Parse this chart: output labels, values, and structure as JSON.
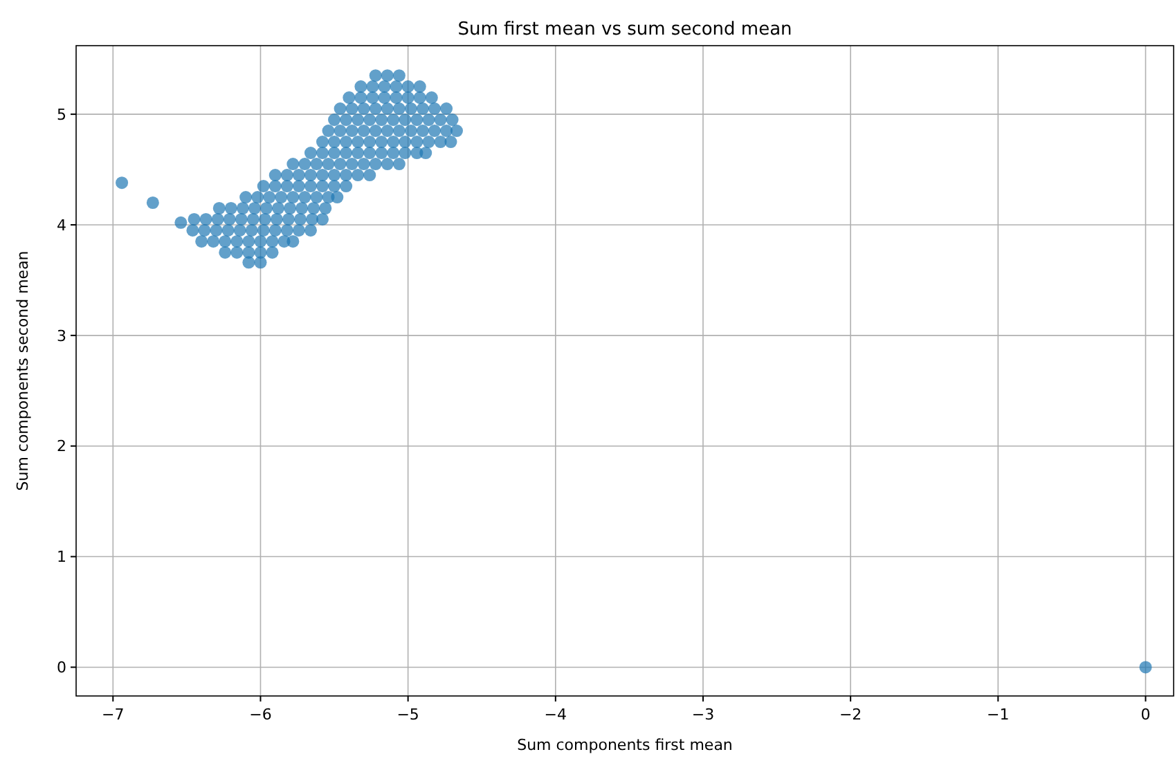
{
  "chart_data": {
    "type": "scatter",
    "title": "Sum first mean vs sum second mean",
    "xlabel": "Sum components first mean",
    "ylabel": "Sum components second mean",
    "xlim": [
      -7.25,
      0.19
    ],
    "ylim": [
      -0.26,
      5.62
    ],
    "xticks": [
      -7,
      -6,
      -5,
      -4,
      -3,
      -2,
      -1,
      0
    ],
    "yticks": [
      0,
      1,
      2,
      3,
      4,
      5
    ],
    "grid": true,
    "marker": "circle",
    "series": [
      {
        "color": "#1f77b4",
        "x": [
          -6.94,
          -6.73,
          -6.54,
          0,
          -5.22,
          -5.14,
          -5.06,
          -5.32,
          -5.24,
          -5.16,
          -5.08,
          -5.0,
          -4.92,
          -5.4,
          -5.32,
          -5.24,
          -5.16,
          -5.08,
          -5.0,
          -4.92,
          -4.84,
          -5.46,
          -5.38,
          -5.3,
          -5.22,
          -5.14,
          -5.06,
          -4.98,
          -4.9,
          -4.82,
          -4.74,
          -5.5,
          -5.42,
          -5.34,
          -5.26,
          -5.18,
          -5.1,
          -5.02,
          -4.94,
          -4.86,
          -4.78,
          -4.7,
          -5.54,
          -5.46,
          -5.38,
          -5.3,
          -5.22,
          -5.14,
          -5.06,
          -4.98,
          -4.9,
          -4.82,
          -4.74,
          -4.67,
          -5.58,
          -5.5,
          -5.42,
          -5.34,
          -5.26,
          -5.18,
          -5.1,
          -5.02,
          -4.94,
          -4.86,
          -4.78,
          -4.71,
          -5.66,
          -5.58,
          -5.5,
          -5.42,
          -5.34,
          -5.26,
          -5.18,
          -5.1,
          -5.02,
          -4.94,
          -4.88,
          -5.78,
          -5.7,
          -5.62,
          -5.54,
          -5.46,
          -5.38,
          -5.3,
          -5.22,
          -5.14,
          -5.06,
          -5.9,
          -5.82,
          -5.74,
          -5.66,
          -5.58,
          -5.5,
          -5.42,
          -5.34,
          -5.26,
          -5.98,
          -5.9,
          -5.82,
          -5.74,
          -5.66,
          -5.58,
          -5.5,
          -5.42,
          -6.1,
          -6.02,
          -5.94,
          -5.86,
          -5.78,
          -5.7,
          -5.62,
          -5.54,
          -5.48,
          -6.28,
          -6.2,
          -6.12,
          -6.04,
          -5.96,
          -5.88,
          -5.8,
          -5.72,
          -5.64,
          -5.56,
          -6.45,
          -6.37,
          -6.29,
          -6.21,
          -6.13,
          -6.05,
          -5.97,
          -5.89,
          -5.81,
          -5.73,
          -5.65,
          -5.58,
          -6.46,
          -6.38,
          -6.3,
          -6.22,
          -6.14,
          -6.06,
          -5.98,
          -5.9,
          -5.82,
          -5.74,
          -5.66,
          -6.4,
          -6.32,
          -6.24,
          -6.16,
          -6.08,
          -6.0,
          -5.92,
          -5.84,
          -5.78,
          -6.24,
          -6.16,
          -6.08,
          -6.0,
          -5.92,
          -6.08,
          -6.0
        ],
        "values": [
          4.38,
          4.2,
          4.02,
          0,
          5.35,
          5.35,
          5.35,
          5.25,
          5.25,
          5.25,
          5.25,
          5.25,
          5.25,
          5.15,
          5.15,
          5.15,
          5.15,
          5.15,
          5.15,
          5.15,
          5.15,
          5.05,
          5.05,
          5.05,
          5.05,
          5.05,
          5.05,
          5.05,
          5.05,
          5.05,
          5.05,
          4.95,
          4.95,
          4.95,
          4.95,
          4.95,
          4.95,
          4.95,
          4.95,
          4.95,
          4.95,
          4.95,
          4.85,
          4.85,
          4.85,
          4.85,
          4.85,
          4.85,
          4.85,
          4.85,
          4.85,
          4.85,
          4.85,
          4.85,
          4.75,
          4.75,
          4.75,
          4.75,
          4.75,
          4.75,
          4.75,
          4.75,
          4.75,
          4.75,
          4.75,
          4.75,
          4.65,
          4.65,
          4.65,
          4.65,
          4.65,
          4.65,
          4.65,
          4.65,
          4.65,
          4.65,
          4.65,
          4.55,
          4.55,
          4.55,
          4.55,
          4.55,
          4.55,
          4.55,
          4.55,
          4.55,
          4.55,
          4.45,
          4.45,
          4.45,
          4.45,
          4.45,
          4.45,
          4.45,
          4.45,
          4.45,
          4.35,
          4.35,
          4.35,
          4.35,
          4.35,
          4.35,
          4.35,
          4.35,
          4.25,
          4.25,
          4.25,
          4.25,
          4.25,
          4.25,
          4.25,
          4.25,
          4.25,
          4.15,
          4.15,
          4.15,
          4.15,
          4.15,
          4.15,
          4.15,
          4.15,
          4.15,
          4.15,
          4.05,
          4.05,
          4.05,
          4.05,
          4.05,
          4.05,
          4.05,
          4.05,
          4.05,
          4.05,
          4.05,
          4.05,
          3.95,
          3.95,
          3.95,
          3.95,
          3.95,
          3.95,
          3.95,
          3.95,
          3.95,
          3.95,
          3.95,
          3.85,
          3.85,
          3.85,
          3.85,
          3.85,
          3.85,
          3.85,
          3.85,
          3.85,
          3.75,
          3.75,
          3.75,
          3.75,
          3.75,
          3.66,
          3.66
        ]
      }
    ]
  }
}
